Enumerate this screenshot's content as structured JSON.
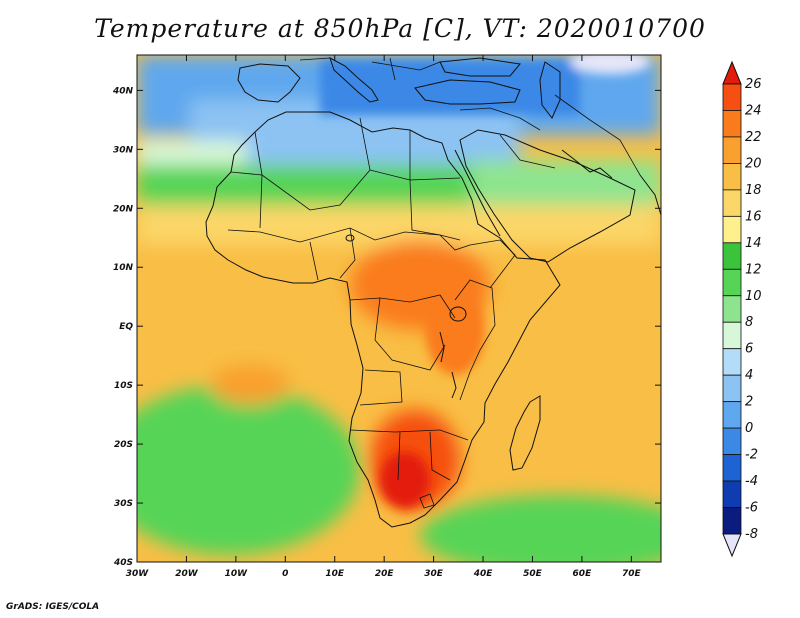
{
  "title": "Temperature at 850hPa [C], VT: 2020010700",
  "credit": "GrADS: IGES/COLA",
  "map": {
    "lon_range": [
      -30,
      76
    ],
    "lat_range": [
      -40,
      46
    ],
    "lon_ticks": [
      {
        "value": -30,
        "label": "30W"
      },
      {
        "value": -20,
        "label": "20W"
      },
      {
        "value": -10,
        "label": "10W"
      },
      {
        "value": 0,
        "label": "0"
      },
      {
        "value": 10,
        "label": "10E"
      },
      {
        "value": 20,
        "label": "20E"
      },
      {
        "value": 30,
        "label": "30E"
      },
      {
        "value": 40,
        "label": "40E"
      },
      {
        "value": 50,
        "label": "50E"
      },
      {
        "value": 60,
        "label": "60E"
      },
      {
        "value": 70,
        "label": "70E"
      }
    ],
    "lat_ticks": [
      {
        "value": 40,
        "label": "40N"
      },
      {
        "value": 30,
        "label": "30N"
      },
      {
        "value": 20,
        "label": "20N"
      },
      {
        "value": 10,
        "label": "10N"
      },
      {
        "value": 0,
        "label": "EQ"
      },
      {
        "value": -10,
        "label": "10S"
      },
      {
        "value": -20,
        "label": "20S"
      },
      {
        "value": -30,
        "label": "30S"
      },
      {
        "value": -40,
        "label": "40S"
      }
    ]
  },
  "colorbar": {
    "labels": [
      "26",
      "24",
      "22",
      "20",
      "18",
      "16",
      "14",
      "12",
      "10",
      "8",
      "6",
      "4",
      "2",
      "0",
      "-2",
      "-4",
      "-6",
      "-8"
    ],
    "colors": [
      "#e31b0b",
      "#f64f11",
      "#fa7b1c",
      "#f9a02f",
      "#f9be45",
      "#fbd668",
      "#fff08e",
      "#3cc33c",
      "#56d456",
      "#8ee48e",
      "#d8f6d8",
      "#b2dcf7",
      "#8cc3f3",
      "#5fa7ee",
      "#3b88e6",
      "#1d63d3",
      "#0f3cb0",
      "#0a1c7e",
      "#e6e6fa"
    ]
  },
  "temperature_field": {
    "units": "C",
    "background_regions": [
      {
        "name": "north-africa-cold",
        "lon": [
          -15,
          30
        ],
        "lat": [
          24,
          35
        ],
        "value": 2
      },
      {
        "name": "europe-mediterranean",
        "lon": [
          -5,
          35
        ],
        "lat": [
          35,
          46
        ],
        "value": -2
      },
      {
        "name": "sahara-band",
        "lon": [
          -25,
          70
        ],
        "lat": [
          17,
          24
        ],
        "value": 10
      },
      {
        "name": "arabia",
        "lon": [
          35,
          65
        ],
        "lat": [
          15,
          30
        ],
        "value": 12
      },
      {
        "name": "tropical-africa",
        "lon": [
          -20,
          60
        ],
        "lat": [
          -15,
          17
        ],
        "value": 18
      },
      {
        "name": "central-africa-warm",
        "lon": [
          15,
          35
        ],
        "lat": [
          0,
          10
        ],
        "value": 22
      },
      {
        "name": "southern-africa-hot",
        "lon": [
          15,
          32
        ],
        "lat": [
          -30,
          -18
        ],
        "value": 24
      },
      {
        "name": "south-atlantic",
        "lon": [
          -30,
          10
        ],
        "lat": [
          -40,
          -15
        ],
        "value": 11
      },
      {
        "name": "indian-ocean",
        "lon": [
          40,
          76
        ],
        "lat": [
          -30,
          10
        ],
        "value": 18
      },
      {
        "name": "southern-ocean",
        "lon": [
          -30,
          76
        ],
        "lat": [
          -40,
          -30
        ],
        "value": 12
      },
      {
        "name": "far-northeast-cold",
        "lon": [
          55,
          76
        ],
        "lat": [
          42,
          46
        ],
        "value": -8
      }
    ]
  }
}
